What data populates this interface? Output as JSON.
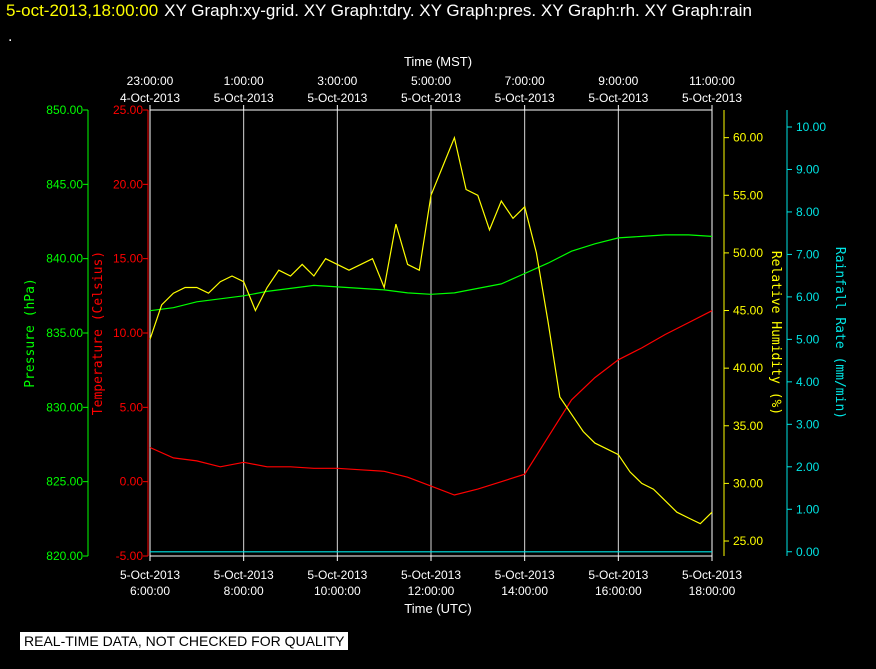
{
  "header": {
    "timestamp": "5-oct-2013,18:00:00",
    "titles": "XY Graph:xy-grid.  XY Graph:tdry.  XY Graph:pres.  XY Graph:rh.  XY Graph:rain",
    "dot": "."
  },
  "footer": {
    "quality_note": "REAL-TIME DATA, NOT CHECKED FOR QUALITY"
  },
  "chart_data": {
    "type": "line",
    "xlabel_bottom": "Time (UTC)",
    "xlabel_top": "Time (MST)",
    "x_ticks_bottom": [
      {
        "l1": "5-Oct-2013",
        "l2": "6:00:00",
        "t": 6
      },
      {
        "l1": "5-Oct-2013",
        "l2": "8:00:00",
        "t": 8
      },
      {
        "l1": "5-Oct-2013",
        "l2": "10:00:00",
        "t": 10
      },
      {
        "l1": "5-Oct-2013",
        "l2": "12:00:00",
        "t": 12
      },
      {
        "l1": "5-Oct-2013",
        "l2": "14:00:00",
        "t": 14
      },
      {
        "l1": "5-Oct-2013",
        "l2": "16:00:00",
        "t": 16
      },
      {
        "l1": "5-Oct-2013",
        "l2": "18:00:00",
        "t": 18
      }
    ],
    "x_ticks_top": [
      {
        "l1": "23:00:00",
        "l2": "4-Oct-2013",
        "t": 6
      },
      {
        "l1": "1:00:00",
        "l2": "5-Oct-2013",
        "t": 8
      },
      {
        "l1": "3:00:00",
        "l2": "5-Oct-2013",
        "t": 10
      },
      {
        "l1": "5:00:00",
        "l2": "5-Oct-2013",
        "t": 12
      },
      {
        "l1": "7:00:00",
        "l2": "5-Oct-2013",
        "t": 14
      },
      {
        "l1": "9:00:00",
        "l2": "5-Oct-2013",
        "t": 16
      },
      {
        "l1": "11:00:00",
        "l2": "5-Oct-2013",
        "t": 18
      }
    ],
    "xlim": [
      6,
      18
    ],
    "grid": true,
    "axes": [
      {
        "id": "pressure",
        "label": "Pressure (hPa)",
        "color": "#00ff00",
        "ticks": [
          "820.00",
          "825.00",
          "830.00",
          "835.00",
          "840.00",
          "845.00",
          "850.00"
        ],
        "ylim": [
          820,
          850
        ]
      },
      {
        "id": "temperature",
        "label": "Temperature (Celsius)",
        "color": "#ff0000",
        "ticks": [
          "-5.00",
          "0.00",
          "5.00",
          "10.00",
          "15.00",
          "20.00",
          "25.00"
        ],
        "ylim": [
          -5,
          25
        ]
      },
      {
        "id": "humidity",
        "label": "Relative Humidity (%)",
        "color": "#ffff00",
        "ticks": [
          "25.00",
          "30.00",
          "35.00",
          "40.00",
          "45.00",
          "50.00",
          "55.00",
          "60.00"
        ],
        "ylim": [
          23.7,
          62.4
        ]
      },
      {
        "id": "rain",
        "label": "Rainfall Rate (mm/min)",
        "color": "#00e5e5",
        "ticks": [
          "0.00",
          "1.00",
          "2.00",
          "3.00",
          "4.00",
          "5.00",
          "6.00",
          "7.00",
          "8.00",
          "9.00",
          "10.00"
        ],
        "ylim": [
          -0.1,
          10.4
        ]
      }
    ],
    "series": [
      {
        "axis": "pressure",
        "color": "#00ff00",
        "x": [
          6,
          6.5,
          7,
          7.5,
          8,
          8.5,
          9,
          9.5,
          10,
          10.5,
          11,
          11.5,
          12,
          12.5,
          13,
          13.5,
          14,
          14.5,
          15,
          15.5,
          16,
          16.5,
          17,
          17.5,
          18
        ],
        "y": [
          836.5,
          836.7,
          837.1,
          837.3,
          837.5,
          837.8,
          838.0,
          838.2,
          838.1,
          838.0,
          837.9,
          837.7,
          837.6,
          837.7,
          838.0,
          838.3,
          839.0,
          839.7,
          840.5,
          841.0,
          841.4,
          841.5,
          841.6,
          841.6,
          841.5
        ]
      },
      {
        "axis": "temperature",
        "color": "#ff0000",
        "x": [
          6,
          6.5,
          7,
          7.5,
          8,
          8.5,
          9,
          9.5,
          10,
          10.5,
          11,
          11.5,
          12,
          12.5,
          13,
          13.5,
          14,
          14.5,
          15,
          15.5,
          16,
          16.5,
          17,
          17.5,
          18
        ],
        "y": [
          2.3,
          1.6,
          1.4,
          1.0,
          1.3,
          1.0,
          1.0,
          0.9,
          0.9,
          0.8,
          0.7,
          0.3,
          -0.3,
          -0.9,
          -0.5,
          0.0,
          0.5,
          3.0,
          5.5,
          7.0,
          8.2,
          9.0,
          9.9,
          10.7,
          11.5
        ]
      },
      {
        "axis": "humidity",
        "color": "#ffff00",
        "x": [
          6,
          6.25,
          6.5,
          6.75,
          7,
          7.25,
          7.5,
          7.75,
          8,
          8.25,
          8.5,
          8.75,
          9,
          9.25,
          9.5,
          9.75,
          10,
          10.25,
          10.5,
          10.75,
          11,
          11.25,
          11.5,
          11.75,
          12,
          12.25,
          12.5,
          12.75,
          13,
          13.25,
          13.5,
          13.75,
          14,
          14.25,
          14.5,
          14.75,
          15,
          15.25,
          15.5,
          15.75,
          16,
          16.25,
          16.5,
          16.75,
          17,
          17.25,
          17.5,
          17.75,
          18
        ],
        "y": [
          42.5,
          45.5,
          46.5,
          47.0,
          47.0,
          46.5,
          47.5,
          48.0,
          47.5,
          45.0,
          47.0,
          48.5,
          48.0,
          49.0,
          48.0,
          49.5,
          49.0,
          48.5,
          49.0,
          49.5,
          47.0,
          52.5,
          49.0,
          48.5,
          55.0,
          57.5,
          60.0,
          55.5,
          55.0,
          52.0,
          54.5,
          53.0,
          54.0,
          50.0,
          44.0,
          37.5,
          36.0,
          34.5,
          33.5,
          33.0,
          32.5,
          31.0,
          30.0,
          29.5,
          28.5,
          27.5,
          27.0,
          26.5,
          27.5
        ]
      },
      {
        "axis": "rain",
        "color": "#00e5e5",
        "x": [
          6,
          18
        ],
        "y": [
          0.0,
          0.0
        ]
      }
    ]
  }
}
